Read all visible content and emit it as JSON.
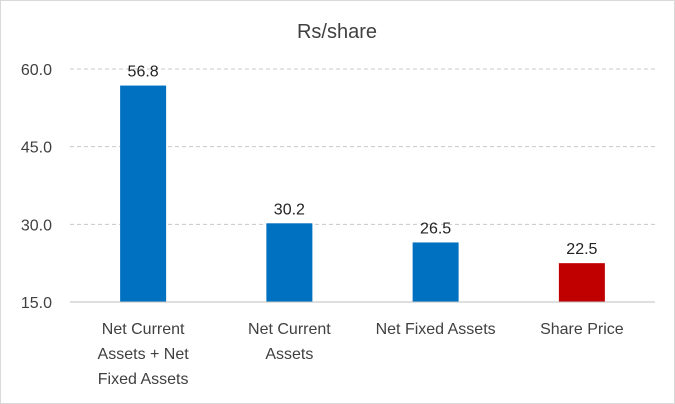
{
  "chart_data": {
    "type": "bar",
    "title": "Rs/share",
    "categories": [
      [
        "Net Current",
        "Assets + Net",
        "Fixed Assets"
      ],
      [
        "Net Current",
        "Assets"
      ],
      [
        "Net Fixed Assets"
      ],
      [
        "Share Price"
      ]
    ],
    "values": [
      56.8,
      30.2,
      26.5,
      22.5
    ],
    "value_labels": [
      "56.8",
      "30.2",
      "26.5",
      "22.5"
    ],
    "colors": [
      "#0070c0",
      "#0070c0",
      "#0070c0",
      "#c00000"
    ],
    "ylim": [
      15,
      60
    ],
    "yticks": [
      15,
      30,
      45,
      60
    ],
    "ytick_labels": [
      "15.0",
      "30.0",
      "45.0",
      "60.0"
    ],
    "grid": true,
    "xlabel": "",
    "ylabel": "",
    "legend": "none"
  }
}
